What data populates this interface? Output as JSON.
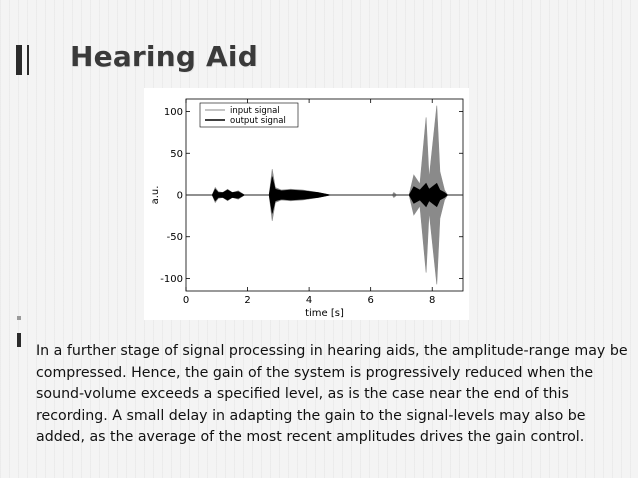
{
  "slide": {
    "title": "Hearing Aid",
    "body": "In a further stage of signal processing in hearing aids, the amplitude-range may be compressed. Hence, the gain of the system is progressively reduced when the sound-volume exceeds a specified level, as is the case near the end of this recording. A small delay in adapting the gain to the signal-levels may also be added, as the average of the most recent amplitudes drives the gain control."
  },
  "chart_data": {
    "type": "line",
    "title": "",
    "xlabel": "time [s]",
    "ylabel": "a.u.",
    "xlim": [
      0,
      9
    ],
    "ylim": [
      -115,
      115
    ],
    "x_ticks": [
      0,
      2,
      4,
      6,
      8
    ],
    "y_ticks": [
      100,
      50,
      0,
      -50,
      -100
    ],
    "legend_position": "top-left",
    "grid": false,
    "series": [
      {
        "name": "input signal",
        "color": "#8a8a8a",
        "envelope": [
          {
            "x": 0.0,
            "y": 0
          },
          {
            "x": 0.85,
            "y": 0
          },
          {
            "x": 0.95,
            "y": 9
          },
          {
            "x": 1.05,
            "y": 4
          },
          {
            "x": 1.2,
            "y": 3
          },
          {
            "x": 1.35,
            "y": 7
          },
          {
            "x": 1.5,
            "y": 3
          },
          {
            "x": 1.7,
            "y": 5
          },
          {
            "x": 1.9,
            "y": 0
          },
          {
            "x": 2.7,
            "y": 0
          },
          {
            "x": 2.8,
            "y": 31
          },
          {
            "x": 2.9,
            "y": 9
          },
          {
            "x": 3.1,
            "y": 6
          },
          {
            "x": 3.4,
            "y": 7
          },
          {
            "x": 3.8,
            "y": 6
          },
          {
            "x": 4.3,
            "y": 3
          },
          {
            "x": 4.7,
            "y": 0
          },
          {
            "x": 6.7,
            "y": 0
          },
          {
            "x": 6.75,
            "y": 3
          },
          {
            "x": 6.85,
            "y": 0
          },
          {
            "x": 7.25,
            "y": 0
          },
          {
            "x": 7.4,
            "y": 24
          },
          {
            "x": 7.6,
            "y": 13
          },
          {
            "x": 7.8,
            "y": 93
          },
          {
            "x": 7.9,
            "y": 20
          },
          {
            "x": 8.15,
            "y": 107
          },
          {
            "x": 8.25,
            "y": 28
          },
          {
            "x": 8.4,
            "y": 6
          },
          {
            "x": 8.5,
            "y": 0
          },
          {
            "x": 9.0,
            "y": 0
          }
        ]
      },
      {
        "name": "output signal",
        "color": "#000000",
        "envelope": [
          {
            "x": 0.0,
            "y": 0
          },
          {
            "x": 0.85,
            "y": 0
          },
          {
            "x": 0.95,
            "y": 7
          },
          {
            "x": 1.05,
            "y": 3
          },
          {
            "x": 1.2,
            "y": 3
          },
          {
            "x": 1.35,
            "y": 6
          },
          {
            "x": 1.5,
            "y": 3
          },
          {
            "x": 1.7,
            "y": 4
          },
          {
            "x": 1.9,
            "y": 0
          },
          {
            "x": 2.7,
            "y": 0
          },
          {
            "x": 2.8,
            "y": 22
          },
          {
            "x": 2.9,
            "y": 7
          },
          {
            "x": 3.1,
            "y": 5
          },
          {
            "x": 3.4,
            "y": 6
          },
          {
            "x": 3.8,
            "y": 5
          },
          {
            "x": 4.3,
            "y": 3
          },
          {
            "x": 4.7,
            "y": 0
          },
          {
            "x": 7.25,
            "y": 0
          },
          {
            "x": 7.4,
            "y": 10
          },
          {
            "x": 7.6,
            "y": 6
          },
          {
            "x": 7.8,
            "y": 14
          },
          {
            "x": 7.9,
            "y": 7
          },
          {
            "x": 8.15,
            "y": 14
          },
          {
            "x": 8.25,
            "y": 6
          },
          {
            "x": 8.4,
            "y": 3
          },
          {
            "x": 8.5,
            "y": 0
          },
          {
            "x": 9.0,
            "y": 0
          }
        ]
      }
    ]
  }
}
